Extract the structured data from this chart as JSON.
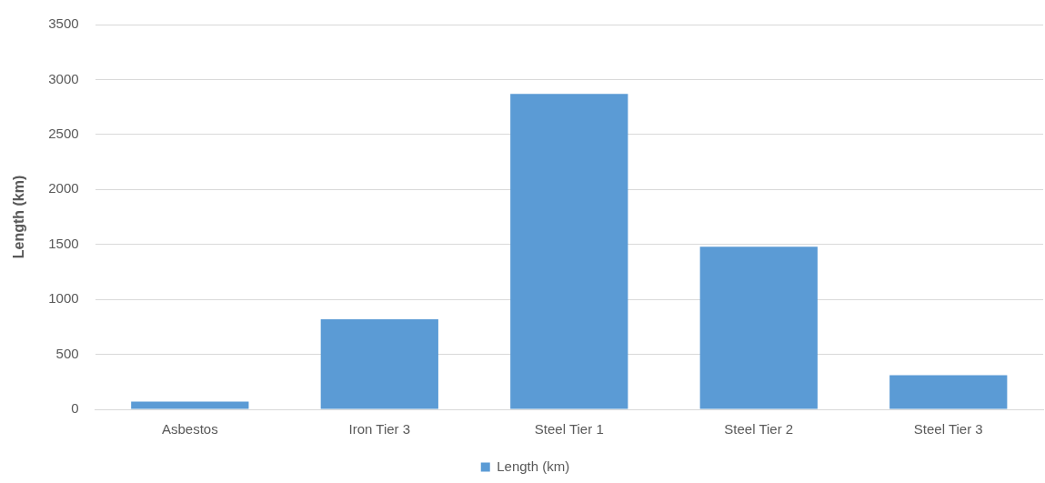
{
  "chart_data": {
    "type": "bar",
    "ylabel": "Length (km)",
    "categories": [
      "Asbestos",
      "Iron Tier 3",
      "Steel Tier 1",
      "Steel Tier 2",
      "Steel Tier 3"
    ],
    "series": [
      {
        "name": "Length (km)",
        "color": "#5b9bd5",
        "values": [
          70,
          820,
          2870,
          1480,
          310
        ]
      }
    ],
    "ylim": [
      0,
      3500
    ],
    "yticks": [
      0,
      500,
      1000,
      1500,
      2000,
      2500,
      3000,
      3500
    ],
    "grid": "y",
    "legend": "bottom"
  }
}
